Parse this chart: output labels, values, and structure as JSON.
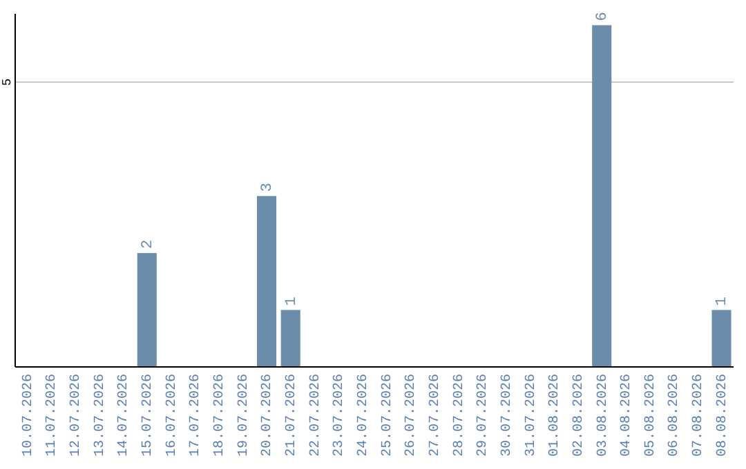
{
  "chart_data": {
    "type": "bar",
    "categories": [
      "10.07.2026",
      "11.07.2026",
      "12.07.2026",
      "13.07.2026",
      "14.07.2026",
      "15.07.2026",
      "16.07.2026",
      "17.07.2026",
      "18.07.2026",
      "19.07.2026",
      "20.07.2026",
      "21.07.2026",
      "22.07.2026",
      "23.07.2026",
      "24.07.2026",
      "25.07.2026",
      "26.07.2026",
      "27.07.2026",
      "28.07.2026",
      "29.07.2026",
      "30.07.2026",
      "31.07.2026",
      "01.08.2026",
      "02.08.2026",
      "03.08.2026",
      "04.08.2026",
      "05.08.2026",
      "06.08.2026",
      "07.08.2026",
      "08.08.2026"
    ],
    "values": [
      0,
      0,
      0,
      0,
      0,
      2,
      0,
      0,
      0,
      0,
      3,
      1,
      0,
      0,
      0,
      0,
      0,
      0,
      0,
      0,
      0,
      0,
      0,
      0,
      6,
      0,
      0,
      0,
      0,
      1
    ],
    "value_labels": [
      null,
      null,
      null,
      null,
      null,
      "2",
      null,
      null,
      null,
      null,
      "3",
      "1",
      null,
      null,
      null,
      null,
      null,
      null,
      null,
      null,
      null,
      null,
      null,
      null,
      "6",
      null,
      null,
      null,
      null,
      "1"
    ],
    "color": "#6b8cab",
    "ylim": [
      0,
      6.2
    ],
    "yticks": [
      5
    ],
    "grid": "y"
  }
}
